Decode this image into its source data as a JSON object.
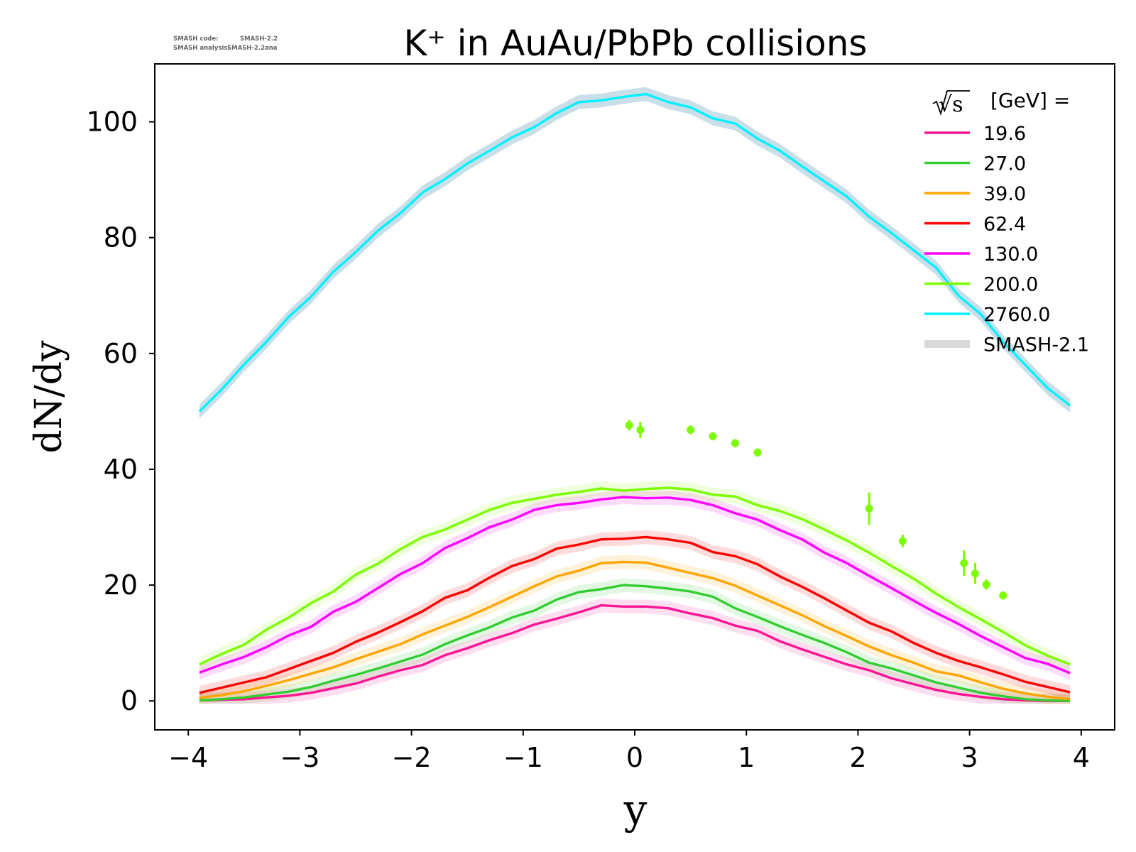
{
  "title": "K⁺ in AuAu/PbPb collisions",
  "watermark": {
    "line1_label": "SMASH code:",
    "line1_value": "SMASH-2.2",
    "line2_label": "SMASH analysis:",
    "line2_value": "SMASH-2.2ana"
  },
  "legend": {
    "header_root": "√s",
    "header_text": "[GeV] =",
    "placement": "top-right",
    "band_label": "SMASH-2.1"
  },
  "chart_data": {
    "type": "line",
    "title": "K⁺ in AuAu/PbPb collisions",
    "xlabel": "y",
    "ylabel": "dN/dy",
    "xlim": [
      -4.3,
      4.3
    ],
    "ylim": [
      -5,
      110
    ],
    "x_ticks": [
      {
        "value": -4,
        "label": "−4"
      },
      {
        "value": -3,
        "label": "−3"
      },
      {
        "value": -2,
        "label": "−2"
      },
      {
        "value": -1,
        "label": "−1"
      },
      {
        "value": 0,
        "label": "0"
      },
      {
        "value": 1,
        "label": "1"
      },
      {
        "value": 2,
        "label": "2"
      },
      {
        "value": 3,
        "label": "3"
      },
      {
        "value": 4,
        "label": "4"
      }
    ],
    "y_ticks": [
      {
        "value": 0,
        "label": "0"
      },
      {
        "value": 20,
        "label": "20"
      },
      {
        "value": 40,
        "label": "40"
      },
      {
        "value": 60,
        "label": "60"
      },
      {
        "value": 80,
        "label": "80"
      },
      {
        "value": 100,
        "label": "100"
      }
    ],
    "grid": false,
    "x": [
      -3.9,
      -3.7,
      -3.5,
      -3.3,
      -3.1,
      -2.9,
      -2.7,
      -2.5,
      -2.3,
      -2.1,
      -1.9,
      -1.7,
      -1.5,
      -1.3,
      -1.1,
      -0.9,
      -0.7,
      -0.5,
      -0.3,
      -0.1,
      0.1,
      0.3,
      0.5,
      0.7,
      0.9,
      1.1,
      1.3,
      1.5,
      1.7,
      1.9,
      2.1,
      2.3,
      2.5,
      2.7,
      2.9,
      3.1,
      3.3,
      3.5,
      3.7,
      3.9
    ],
    "series": [
      {
        "name": "19.6",
        "color": "#ff1493",
        "values": [
          0.1,
          0.2,
          0.3,
          0.6,
          0.9,
          1.4,
          2.2,
          3.0,
          4.2,
          5.3,
          6.2,
          7.9,
          9.1,
          10.5,
          11.7,
          13.2,
          14.2,
          15.3,
          16.5,
          16.3,
          16.3,
          16.0,
          15.1,
          14.3,
          13.0,
          12.1,
          10.3,
          8.9,
          7.6,
          6.3,
          5.3,
          3.9,
          2.9,
          1.9,
          1.2,
          0.7,
          0.3,
          0.1,
          0.0,
          0.0
        ]
      },
      {
        "name": "27.0",
        "color": "#32cd32",
        "values": [
          0.1,
          0.3,
          0.6,
          1.1,
          1.6,
          2.4,
          3.5,
          4.5,
          5.6,
          6.8,
          8.0,
          9.8,
          11.3,
          12.7,
          14.4,
          15.6,
          17.5,
          18.8,
          19.3,
          20.0,
          19.8,
          19.4,
          18.9,
          18.0,
          16.0,
          14.5,
          12.9,
          11.4,
          10.0,
          8.4,
          6.6,
          5.6,
          4.4,
          3.2,
          2.3,
          1.4,
          0.8,
          0.3,
          0.1,
          0.0
        ]
      },
      {
        "name": "39.0",
        "color": "#ffa500",
        "values": [
          0.5,
          1.0,
          1.7,
          2.6,
          3.6,
          4.7,
          5.8,
          7.2,
          8.5,
          9.8,
          11.5,
          13.0,
          14.5,
          16.2,
          18.0,
          19.8,
          21.5,
          22.5,
          23.8,
          24.0,
          23.9,
          23.0,
          22.1,
          21.2,
          19.9,
          18.2,
          16.5,
          14.8,
          12.9,
          11.2,
          9.4,
          7.9,
          6.6,
          5.1,
          4.4,
          3.2,
          2.1,
          1.3,
          0.7,
          0.3
        ]
      },
      {
        "name": "62.4",
        "color": "#ff0000",
        "values": [
          1.4,
          2.3,
          3.2,
          4.1,
          5.5,
          6.9,
          8.3,
          10.2,
          11.8,
          13.6,
          15.5,
          17.8,
          19.1,
          21.3,
          23.3,
          24.5,
          26.3,
          27.0,
          27.9,
          28.0,
          28.3,
          27.9,
          27.3,
          25.7,
          25.0,
          23.6,
          21.5,
          19.7,
          17.7,
          15.6,
          13.5,
          12.0,
          10.0,
          8.3,
          6.9,
          5.8,
          4.6,
          3.3,
          2.4,
          1.5
        ]
      },
      {
        "name": "130.0",
        "color": "#ff00ff",
        "values": [
          4.9,
          6.3,
          7.6,
          9.3,
          11.3,
          12.8,
          15.4,
          17.1,
          19.5,
          21.9,
          23.8,
          26.4,
          28.1,
          30.0,
          31.3,
          33.0,
          33.8,
          34.2,
          34.8,
          35.2,
          35.0,
          35.1,
          34.7,
          33.8,
          32.4,
          31.3,
          29.5,
          27.9,
          25.6,
          23.8,
          21.6,
          19.5,
          17.3,
          15.2,
          13.3,
          11.2,
          9.3,
          7.4,
          6.4,
          4.8
        ]
      },
      {
        "name": "200.0",
        "color": "#7cfc00",
        "values": [
          6.3,
          8.1,
          9.7,
          12.3,
          14.4,
          16.9,
          18.9,
          21.8,
          23.7,
          26.2,
          28.3,
          29.6,
          31.3,
          33.0,
          34.2,
          34.9,
          35.6,
          36.1,
          36.7,
          36.3,
          36.6,
          36.8,
          36.5,
          35.6,
          35.3,
          33.8,
          32.8,
          31.4,
          29.6,
          27.7,
          25.6,
          23.3,
          21.1,
          18.5,
          16.2,
          14.1,
          11.9,
          9.6,
          7.8,
          6.3
        ]
      },
      {
        "name": "2760.0",
        "color": "#00f2ff",
        "values": [
          50.0,
          53.8,
          58.1,
          62.0,
          66.3,
          69.8,
          74.1,
          77.5,
          81.2,
          84.2,
          87.8,
          90.1,
          92.8,
          95.0,
          97.3,
          99.1,
          101.5,
          103.4,
          103.7,
          104.3,
          104.8,
          103.4,
          102.5,
          100.6,
          99.7,
          97.1,
          95.0,
          92.3,
          89.7,
          87.1,
          83.6,
          80.8,
          77.8,
          74.8,
          70.0,
          66.8,
          62.0,
          58.0,
          54.0,
          51.0
        ]
      }
    ],
    "band": {
      "name": "SMASH-2.1",
      "color": "#d9d9d9"
    },
    "measured_points": {
      "color": "#7cfc00",
      "points": [
        {
          "x": -0.05,
          "y": 47.6,
          "err": 0.9
        },
        {
          "x": 0.05,
          "y": 46.8,
          "err": 1.4
        },
        {
          "x": 0.5,
          "y": 46.8,
          "err": 0.8
        },
        {
          "x": 0.7,
          "y": 45.7,
          "err": 0.7
        },
        {
          "x": 0.9,
          "y": 44.5,
          "err": 0.7
        },
        {
          "x": 1.1,
          "y": 42.9,
          "err": 0.7
        },
        {
          "x": 2.1,
          "y": 33.2,
          "err": 2.8
        },
        {
          "x": 2.4,
          "y": 27.6,
          "err": 1.1
        },
        {
          "x": 2.95,
          "y": 23.8,
          "err": 2.2
        },
        {
          "x": 3.05,
          "y": 22.0,
          "err": 1.8
        },
        {
          "x": 3.15,
          "y": 20.1,
          "err": 0.9
        },
        {
          "x": 3.3,
          "y": 18.2,
          "err": 0.7
        }
      ]
    }
  }
}
